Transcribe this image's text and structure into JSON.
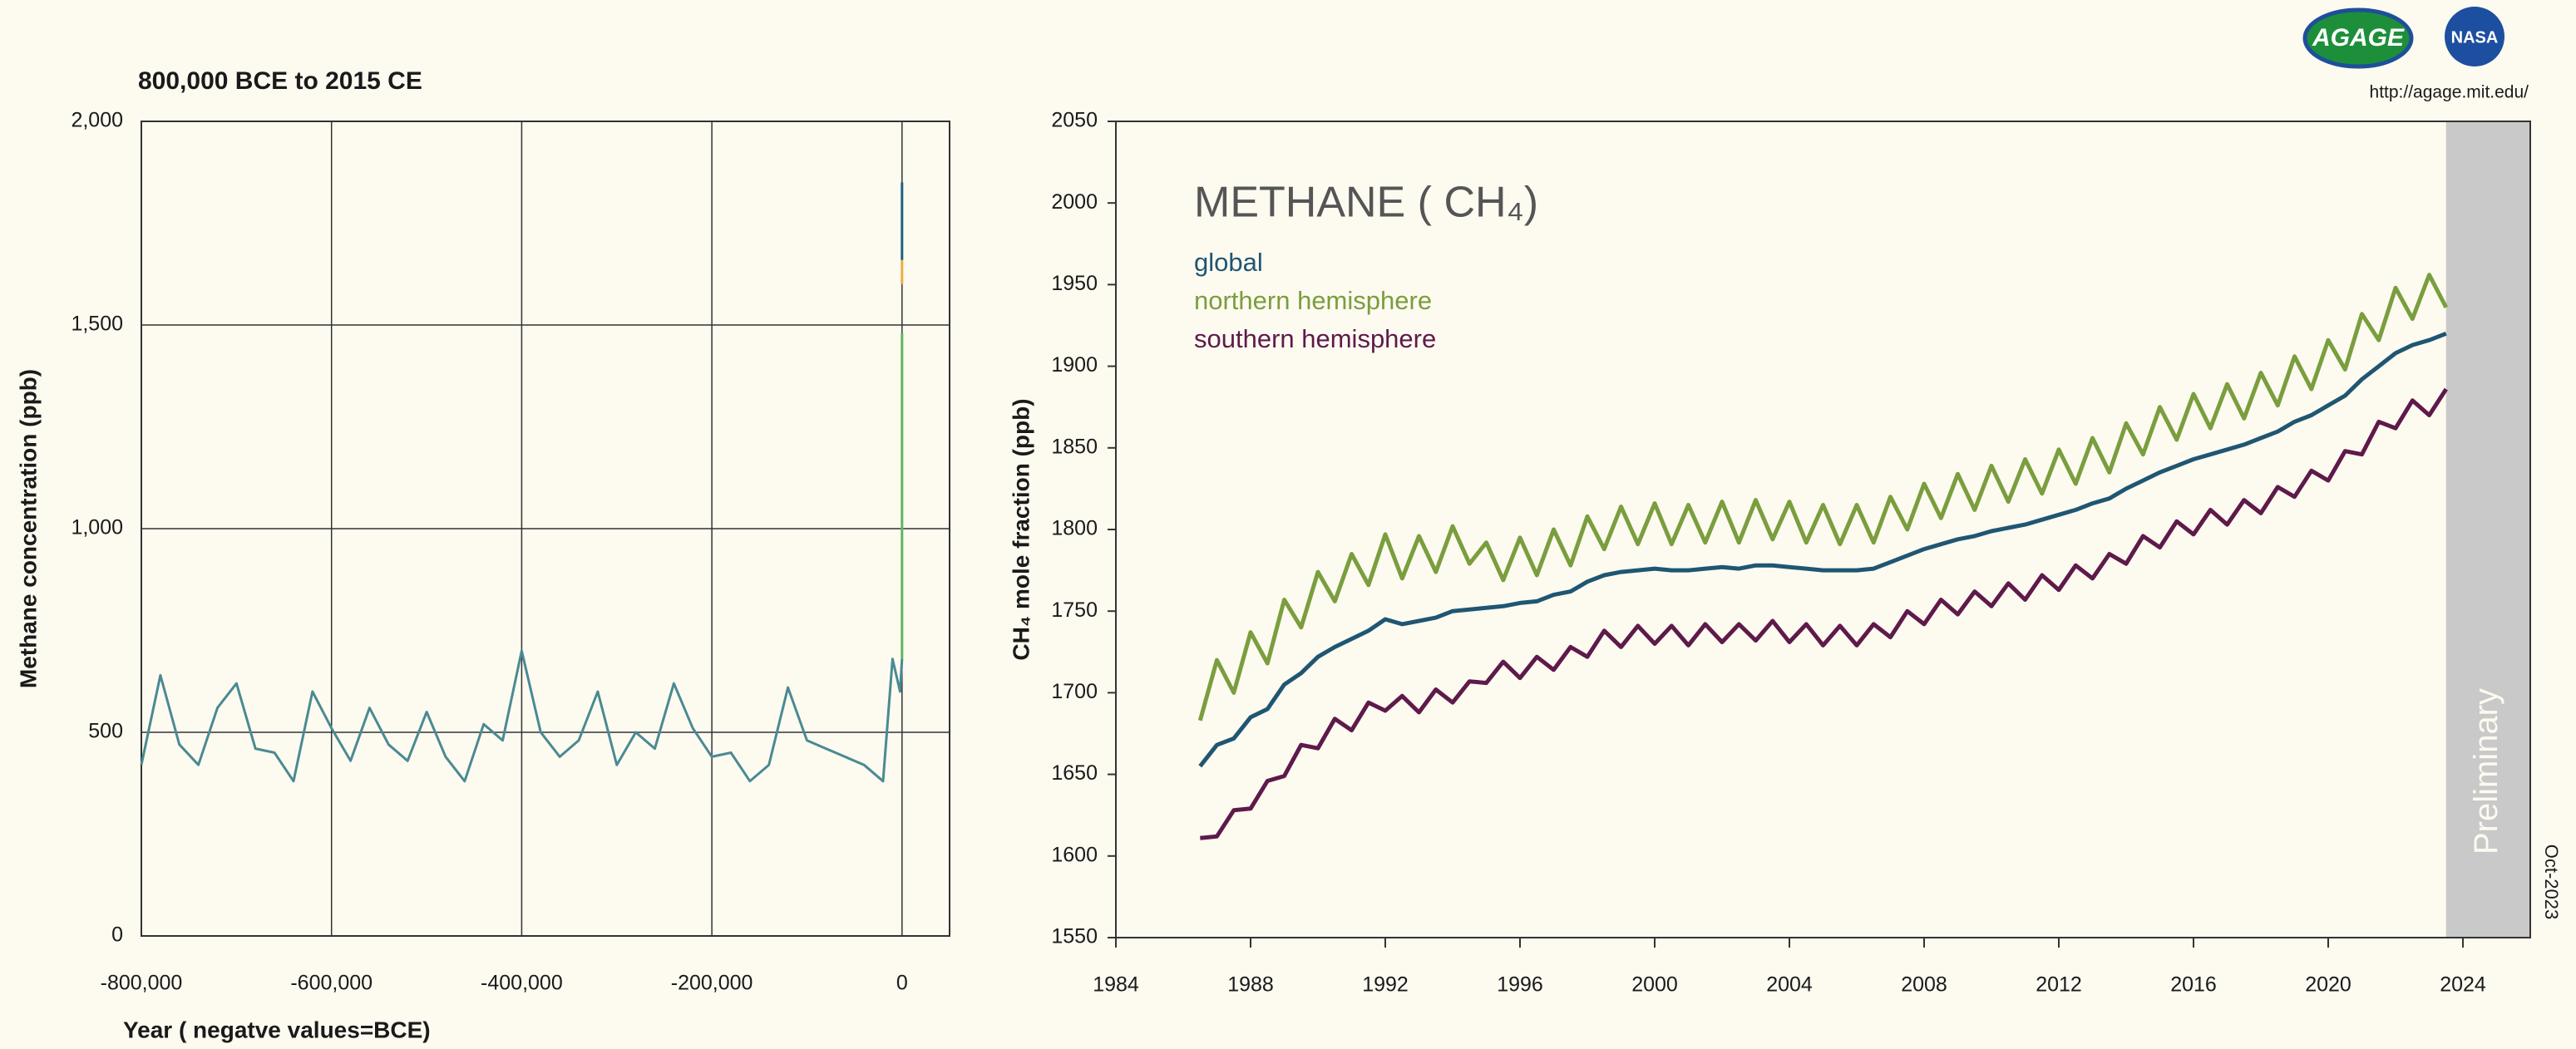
{
  "logos": [
    "AGAGE",
    "NASA"
  ],
  "url": "http://agage.mit.edu/",
  "chart_data": [
    {
      "type": "line",
      "title": "800,000 BCE to 2015 CE",
      "xlabel": "Year ( negatve values=BCE)",
      "ylabel": "Methane concentration (ppb)",
      "xlim": [
        -800000,
        50000
      ],
      "ylim": [
        0,
        2000
      ],
      "xticks": [
        {
          "value": -800000,
          "label": "-800,000"
        },
        {
          "value": -600000,
          "label": "-600,000"
        },
        {
          "value": -400000,
          "label": "-400,000"
        },
        {
          "value": -200000,
          "label": "-200,000"
        },
        0
      ],
      "yticks": [
        0,
        500,
        {
          "value": 1000,
          "label": "1,000"
        },
        {
          "value": 1500,
          "label": "1,500"
        },
        {
          "value": 2000,
          "label": "2,000"
        }
      ],
      "grid": true,
      "series": [
        {
          "color": "#4a8a92",
          "x": [
            -800000,
            -780000,
            -760000,
            -740000,
            -720000,
            -700000,
            -680000,
            -660000,
            -640000,
            -620000,
            -600000,
            -580000,
            -560000,
            -540000,
            -520000,
            -500000,
            -480000,
            -460000,
            -440000,
            -420000,
            -400000,
            -380000,
            -360000,
            -340000,
            -320000,
            -300000,
            -280000,
            -260000,
            -240000,
            -220000,
            -200000,
            -180000,
            -160000,
            -140000,
            -120000,
            -100000,
            -80000,
            -60000,
            -40000,
            -20000,
            -10000,
            -2000,
            0
          ],
          "values": [
            420,
            640,
            470,
            420,
            560,
            620,
            460,
            450,
            380,
            600,
            510,
            430,
            560,
            470,
            430,
            550,
            440,
            380,
            520,
            480,
            700,
            500,
            440,
            480,
            600,
            420,
            500,
            460,
            620,
            510,
            440,
            450,
            380,
            420,
            610,
            480,
            460,
            440,
            420,
            380,
            680,
            600,
            680
          ]
        },
        {
          "color": "#5cb85c",
          "x": [
            0,
            0
          ],
          "values": [
            680,
            1480
          ]
        },
        {
          "color": "#e8b040",
          "x": [
            0,
            0
          ],
          "values": [
            1600,
            1660
          ]
        },
        {
          "color": "#1f5f7f",
          "x": [
            0,
            0
          ],
          "values": [
            1660,
            1850
          ]
        }
      ]
    },
    {
      "type": "line",
      "title": "METHANE ( CH₄)",
      "ylabel": "CH₄  mole fraction (ppb)",
      "legend": "upper left",
      "shaded_region": [
        2023.5,
        2026
      ],
      "shaded_label": "Preliminary",
      "date_note": "Oct-2023",
      "xlim": [
        1984,
        2026
      ],
      "ylim": [
        1550,
        2050
      ],
      "xticks": [
        1984,
        1988,
        1992,
        1996,
        2000,
        2004,
        2008,
        2012,
        2016,
        2020,
        2024
      ],
      "yticks": [
        1550,
        1600,
        1650,
        1700,
        1750,
        1800,
        1850,
        1900,
        1950,
        2000,
        2050
      ],
      "grid": false,
      "x": [
        1986.5,
        1987,
        1987.5,
        1988,
        1988.5,
        1989,
        1989.5,
        1990,
        1990.5,
        1991,
        1991.5,
        1992,
        1992.5,
        1993,
        1993.5,
        1994,
        1994.5,
        1995,
        1995.5,
        1996,
        1996.5,
        1997,
        1997.5,
        1998,
        1998.5,
        1999,
        1999.5,
        2000,
        2000.5,
        2001,
        2001.5,
        2002,
        2002.5,
        2003,
        2003.5,
        2004,
        2004.5,
        2005,
        2005.5,
        2006,
        2006.5,
        2007,
        2007.5,
        2008,
        2008.5,
        2009,
        2009.5,
        2010,
        2010.5,
        2011,
        2011.5,
        2012,
        2012.5,
        2013,
        2013.5,
        2014,
        2014.5,
        2015,
        2015.5,
        2016,
        2016.5,
        2017,
        2017.5,
        2018,
        2018.5,
        2019,
        2019.5,
        2020,
        2020.5,
        2021,
        2021.5,
        2022,
        2022.5,
        2023,
        2023.5
      ],
      "series": [
        {
          "name": "global",
          "color": "#1f5672",
          "values": [
            1655,
            1668,
            1672,
            1685,
            1690,
            1705,
            1712,
            1722,
            1728,
            1733,
            1738,
            1745,
            1742,
            1744,
            1746,
            1750,
            1751,
            1752,
            1753,
            1755,
            1756,
            1760,
            1762,
            1768,
            1772,
            1774,
            1775,
            1776,
            1775,
            1775,
            1776,
            1777,
            1776,
            1778,
            1778,
            1777,
            1776,
            1775,
            1775,
            1775,
            1776,
            1780,
            1784,
            1788,
            1791,
            1794,
            1796,
            1799,
            1801,
            1803,
            1806,
            1809,
            1812,
            1816,
            1819,
            1825,
            1830,
            1835,
            1839,
            1843,
            1846,
            1849,
            1852,
            1856,
            1860,
            1866,
            1870,
            1876,
            1882,
            1892,
            1900,
            1908,
            1913,
            1916,
            1920
          ]
        },
        {
          "name": "northern hemisphere",
          "color": "#7a9e3e",
          "values": [
            1683,
            1720,
            1700,
            1737,
            1718,
            1757,
            1740,
            1774,
            1756,
            1785,
            1766,
            1797,
            1770,
            1796,
            1774,
            1802,
            1779,
            1792,
            1769,
            1795,
            1772,
            1800,
            1778,
            1808,
            1788,
            1814,
            1791,
            1816,
            1791,
            1815,
            1792,
            1817,
            1792,
            1818,
            1794,
            1817,
            1792,
            1815,
            1791,
            1815,
            1792,
            1820,
            1800,
            1828,
            1807,
            1834,
            1812,
            1839,
            1817,
            1843,
            1822,
            1849,
            1828,
            1856,
            1835,
            1865,
            1846,
            1875,
            1855,
            1883,
            1862,
            1889,
            1868,
            1896,
            1876,
            1906,
            1886,
            1916,
            1898,
            1932,
            1916,
            1948,
            1929,
            1956,
            1936
          ]
        },
        {
          "name": "southern hemisphere",
          "color": "#5e1a4a",
          "values": [
            1611,
            1612,
            1628,
            1629,
            1646,
            1649,
            1668,
            1666,
            1684,
            1677,
            1694,
            1689,
            1698,
            1688,
            1702,
            1694,
            1707,
            1706,
            1719,
            1709,
            1722,
            1714,
            1728,
            1722,
            1738,
            1728,
            1741,
            1730,
            1741,
            1729,
            1742,
            1731,
            1742,
            1732,
            1744,
            1731,
            1742,
            1729,
            1741,
            1729,
            1742,
            1734,
            1750,
            1742,
            1757,
            1748,
            1762,
            1753,
            1767,
            1757,
            1772,
            1763,
            1778,
            1770,
            1785,
            1779,
            1796,
            1789,
            1805,
            1797,
            1812,
            1803,
            1818,
            1810,
            1826,
            1820,
            1836,
            1830,
            1848,
            1846,
            1866,
            1862,
            1879,
            1870,
            1886
          ]
        }
      ]
    }
  ]
}
